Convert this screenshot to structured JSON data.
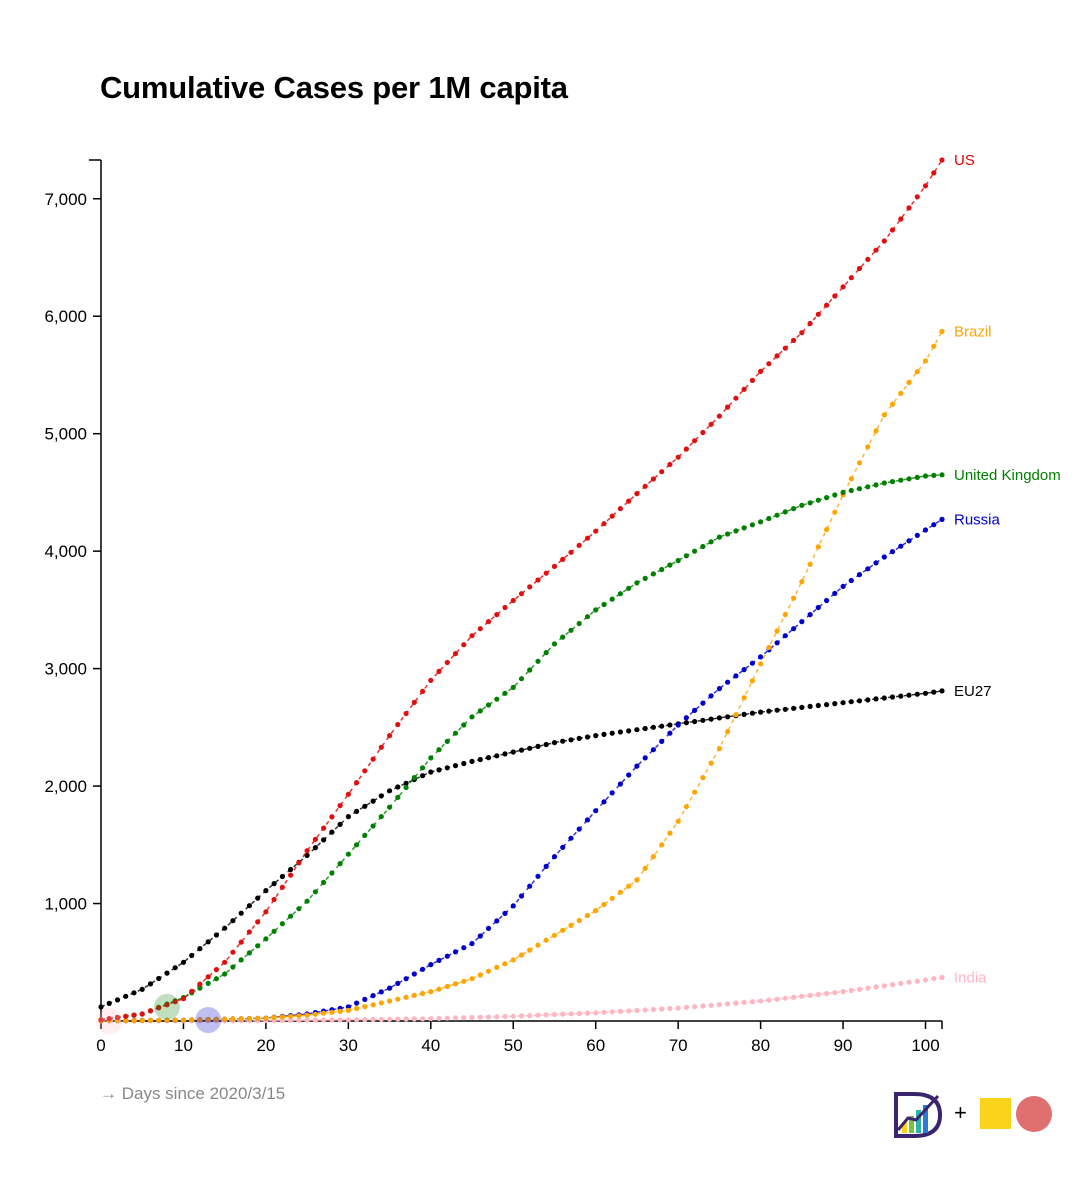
{
  "chart_data": {
    "type": "line",
    "title": "Cumulative Cases per 1M capita",
    "xlabel": "→ Days since 2020/3/15",
    "ylabel": "",
    "xlim": [
      0,
      102
    ],
    "ylim": [
      0,
      7330
    ],
    "x_ticks": [
      0,
      10,
      20,
      30,
      40,
      50,
      60,
      70,
      80,
      90,
      100
    ],
    "x_tick_labels": [
      "0",
      "10",
      "20",
      "30",
      "40",
      "50",
      "60",
      "70",
      "80",
      "90",
      "100"
    ],
    "y_ticks": [
      1000,
      2000,
      3000,
      4000,
      5000,
      6000,
      7000
    ],
    "y_tick_labels": [
      "1,000",
      "2,000",
      "3,000",
      "4,000",
      "5,000",
      "6,000",
      "7,000"
    ],
    "grid": false,
    "legend": "direct labels at line ends",
    "series": [
      {
        "name": "US",
        "color": "#e00000",
        "marker_color": "#e01010",
        "points": [
          [
            0,
            10
          ],
          [
            5,
            60
          ],
          [
            10,
            190
          ],
          [
            15,
            500
          ],
          [
            20,
            930
          ],
          [
            25,
            1450
          ],
          [
            30,
            1930
          ],
          [
            35,
            2430
          ],
          [
            40,
            2900
          ],
          [
            45,
            3280
          ],
          [
            50,
            3580
          ],
          [
            55,
            3870
          ],
          [
            60,
            4170
          ],
          [
            65,
            4490
          ],
          [
            70,
            4800
          ],
          [
            75,
            5150
          ],
          [
            80,
            5530
          ],
          [
            85,
            5860
          ],
          [
            90,
            6250
          ],
          [
            95,
            6640
          ],
          [
            100,
            7110
          ],
          [
            102,
            7330
          ]
        ]
      },
      {
        "name": "Brazil",
        "color": "#ffa500",
        "marker_color": "#ffa500",
        "points": [
          [
            0,
            1
          ],
          [
            10,
            8
          ],
          [
            20,
            25
          ],
          [
            25,
            50
          ],
          [
            30,
            90
          ],
          [
            35,
            170
          ],
          [
            40,
            250
          ],
          [
            45,
            360
          ],
          [
            50,
            520
          ],
          [
            55,
            730
          ],
          [
            60,
            940
          ],
          [
            65,
            1200
          ],
          [
            70,
            1700
          ],
          [
            75,
            2320
          ],
          [
            80,
            3040
          ],
          [
            85,
            3740
          ],
          [
            90,
            4480
          ],
          [
            95,
            5160
          ],
          [
            100,
            5620
          ],
          [
            102,
            5870
          ]
        ]
      },
      {
        "name": "United Kingdom",
        "color": "#008000",
        "marker_color": "#008000",
        "points": [
          [
            0,
            10
          ],
          [
            5,
            60
          ],
          [
            10,
            200
          ],
          [
            15,
            400
          ],
          [
            20,
            700
          ],
          [
            25,
            1020
          ],
          [
            30,
            1420
          ],
          [
            35,
            1820
          ],
          [
            40,
            2240
          ],
          [
            45,
            2590
          ],
          [
            50,
            2840
          ],
          [
            55,
            3210
          ],
          [
            60,
            3500
          ],
          [
            65,
            3730
          ],
          [
            70,
            3920
          ],
          [
            75,
            4120
          ],
          [
            80,
            4250
          ],
          [
            85,
            4390
          ],
          [
            90,
            4500
          ],
          [
            95,
            4580
          ],
          [
            100,
            4640
          ],
          [
            102,
            4650
          ]
        ]
      },
      {
        "name": "Russia",
        "color": "#0000cc",
        "marker_color": "#0000cc",
        "points": [
          [
            0,
            2
          ],
          [
            10,
            8
          ],
          [
            20,
            25
          ],
          [
            25,
            60
          ],
          [
            30,
            120
          ],
          [
            35,
            280
          ],
          [
            40,
            480
          ],
          [
            45,
            660
          ],
          [
            50,
            980
          ],
          [
            55,
            1400
          ],
          [
            60,
            1790
          ],
          [
            65,
            2170
          ],
          [
            70,
            2520
          ],
          [
            75,
            2830
          ],
          [
            80,
            3100
          ],
          [
            85,
            3400
          ],
          [
            90,
            3700
          ],
          [
            95,
            3950
          ],
          [
            100,
            4180
          ],
          [
            102,
            4270
          ]
        ]
      },
      {
        "name": "EU27",
        "color": "#000000",
        "marker_color": "#000000",
        "points": [
          [
            0,
            120
          ],
          [
            5,
            270
          ],
          [
            10,
            500
          ],
          [
            15,
            790
          ],
          [
            20,
            1110
          ],
          [
            25,
            1410
          ],
          [
            30,
            1740
          ],
          [
            35,
            1960
          ],
          [
            40,
            2120
          ],
          [
            45,
            2210
          ],
          [
            50,
            2290
          ],
          [
            55,
            2370
          ],
          [
            60,
            2430
          ],
          [
            65,
            2480
          ],
          [
            70,
            2530
          ],
          [
            75,
            2580
          ],
          [
            80,
            2630
          ],
          [
            85,
            2670
          ],
          [
            90,
            2710
          ],
          [
            95,
            2750
          ],
          [
            100,
            2790
          ],
          [
            102,
            2810
          ]
        ]
      },
      {
        "name": "India",
        "color": "#ffb6c1",
        "marker_color": "#ffb6c1",
        "points": [
          [
            0,
            1
          ],
          [
            10,
            2
          ],
          [
            20,
            4
          ],
          [
            30,
            10
          ],
          [
            40,
            20
          ],
          [
            50,
            40
          ],
          [
            60,
            70
          ],
          [
            70,
            110
          ],
          [
            80,
            170
          ],
          [
            90,
            250
          ],
          [
            100,
            350
          ],
          [
            102,
            370
          ]
        ]
      }
    ],
    "start_markers": [
      {
        "series": "India",
        "x": 1,
        "y": 1,
        "color": "#ffb6c1"
      },
      {
        "series": "United Kingdom",
        "x": 8,
        "y": 120,
        "color": "#008000"
      },
      {
        "series": "Russia",
        "x": 13,
        "y": 8,
        "color": "#0000cc"
      }
    ]
  },
  "branding": {
    "logo_letter": "D",
    "plus_sign": "+",
    "square_color": "#f9d31a",
    "circle_color": "#e07070",
    "logo_icon": "chart-d-logo-icon"
  }
}
